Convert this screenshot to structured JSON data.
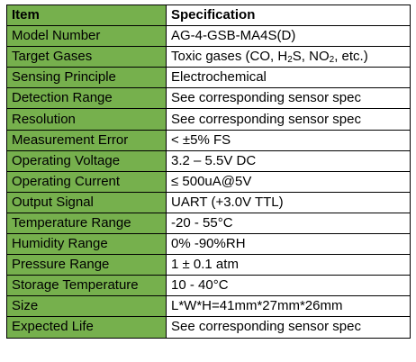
{
  "colors": {
    "item_column_bg": "#76b04d",
    "spec_column_bg": "#ffffff",
    "border": "#000000"
  },
  "table": {
    "headers": {
      "item": "Item",
      "spec": "Specification"
    },
    "rows": [
      {
        "item": "Model Number",
        "spec": "AG-4-GSB-MA4S(D)"
      },
      {
        "item": "Target Gases",
        "spec": "Toxic gases (CO, H2S, NO2, etc.)"
      },
      {
        "item": "Sensing Principle",
        "spec": "Electrochemical"
      },
      {
        "item": "Detection Range",
        "spec": "See corresponding sensor spec"
      },
      {
        "item": "Resolution",
        "spec": "See corresponding sensor spec"
      },
      {
        "item": "Measurement Error",
        "spec": "< ±5% FS"
      },
      {
        "item": "Operating Voltage",
        "spec": "3.2 – 5.5V DC"
      },
      {
        "item": "Operating Current",
        "spec": "≤ 500uA@5V"
      },
      {
        "item": "Output Signal",
        "spec": "UART (+3.0V TTL)"
      },
      {
        "item": "Temperature Range",
        "spec": "-20 - 55°C"
      },
      {
        "item": "Humidity Range",
        "spec": "0% -90%RH"
      },
      {
        "item": "Pressure Range",
        "spec": "1 ± 0.1 atm"
      },
      {
        "item": "Storage Temperature",
        "spec": "10 - 40°C"
      },
      {
        "item": "Size",
        "spec": "L*W*H=41mm*27mm*26mm"
      },
      {
        "item": "Expected Life",
        "spec": "See corresponding sensor spec"
      }
    ]
  }
}
